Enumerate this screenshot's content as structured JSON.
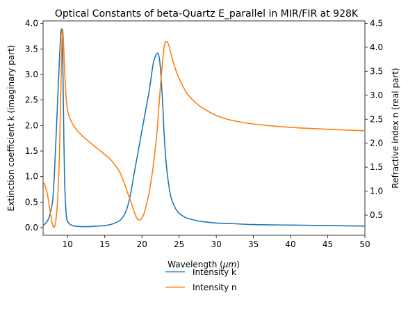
{
  "chart_data": {
    "type": "line",
    "title": "Optical Constants of beta-Quartz E_parallel in MIR/FIR at 928K",
    "xlabel_main": "Wavelength (",
    "xlabel_unit": "μm",
    "xlabel_close": ")",
    "ylabel_left": "Extinction coefficient k (imaginary part)",
    "ylabel_right": "Refractive index n (real part)",
    "xlim": [
      6.7,
      50
    ],
    "ylim_left": [
      -0.15,
      4.05
    ],
    "ylim_right": [
      0.08,
      4.55
    ],
    "xticks": [
      10,
      15,
      20,
      25,
      30,
      35,
      40,
      45,
      50
    ],
    "xtick_labels": [
      "10",
      "15",
      "20",
      "25",
      "30",
      "35",
      "40",
      "45",
      "50"
    ],
    "yticks_left": [
      0.0,
      0.5,
      1.0,
      1.5,
      2.0,
      2.5,
      3.0,
      3.5,
      4.0
    ],
    "ytick_labels_left": [
      "0.0",
      "0.5",
      "1.0",
      "1.5",
      "2.0",
      "2.5",
      "3.0",
      "3.5",
      "4.0"
    ],
    "yticks_right": [
      0.5,
      1.0,
      1.5,
      2.0,
      2.5,
      3.0,
      3.5,
      4.0,
      4.5
    ],
    "ytick_labels_right": [
      "0.5",
      "1.0",
      "1.5",
      "2.0",
      "2.5",
      "3.0",
      "3.5",
      "4.0",
      "4.5"
    ],
    "grid": false,
    "legend_position": "below-center",
    "series": [
      {
        "name": "Intensity k",
        "axis": "left",
        "color": "#1f77b4",
        "x": [
          6.7,
          7.0,
          7.5,
          8.0,
          8.3,
          8.6,
          8.9,
          9.1,
          9.25,
          9.35,
          9.45,
          9.6,
          9.8,
          10.0,
          10.5,
          11.0,
          12.0,
          13.0,
          14.0,
          15.0,
          16.0,
          17.0,
          17.5,
          18.0,
          18.5,
          19.0,
          19.5,
          20.0,
          20.5,
          21.0,
          21.5,
          21.8,
          22.1,
          22.3,
          22.5,
          22.8,
          23.0,
          23.3,
          23.7,
          24.0,
          24.5,
          25.0,
          26.0,
          27.0,
          28.0,
          30.0,
          32.0,
          35.0,
          40.0,
          45.0,
          50.0
        ],
        "values": [
          0.04,
          0.08,
          0.2,
          0.55,
          1.3,
          2.3,
          3.3,
          3.83,
          3.83,
          3.3,
          2.2,
          0.9,
          0.28,
          0.12,
          0.05,
          0.03,
          0.02,
          0.02,
          0.03,
          0.04,
          0.07,
          0.14,
          0.22,
          0.38,
          0.68,
          1.1,
          1.5,
          1.9,
          2.3,
          2.7,
          3.2,
          3.35,
          3.42,
          3.35,
          3.1,
          2.4,
          1.8,
          1.2,
          0.75,
          0.55,
          0.38,
          0.28,
          0.19,
          0.15,
          0.12,
          0.09,
          0.08,
          0.06,
          0.05,
          0.04,
          0.03
        ]
      },
      {
        "name": "Intensity n",
        "axis": "right",
        "color": "#ff7f0e",
        "x": [
          6.7,
          7.0,
          7.3,
          7.6,
          7.9,
          8.1,
          8.3,
          8.5,
          8.7,
          8.9,
          9.1,
          9.25,
          9.35,
          9.45,
          9.6,
          9.8,
          10.0,
          10.3,
          10.6,
          11.0,
          11.5,
          12.0,
          12.5,
          13.0,
          13.5,
          14.0,
          14.5,
          15.0,
          15.5,
          16.0,
          16.5,
          17.0,
          17.5,
          18.0,
          18.5,
          19.0,
          19.3,
          19.6,
          19.9,
          20.2,
          20.5,
          21.0,
          21.5,
          22.0,
          22.3,
          22.6,
          22.9,
          23.1,
          23.3,
          23.6,
          24.0,
          24.5,
          25.0,
          26.0,
          27.0,
          28.0,
          30.0,
          32.0,
          35.0,
          40.0,
          45.0,
          50.0
        ],
        "values": [
          1.2,
          1.1,
          0.92,
          0.62,
          0.35,
          0.25,
          0.29,
          0.5,
          0.95,
          1.8,
          3.2,
          4.25,
          4.35,
          4.1,
          3.5,
          2.95,
          2.68,
          2.52,
          2.42,
          2.32,
          2.23,
          2.15,
          2.08,
          2.02,
          1.95,
          1.89,
          1.83,
          1.76,
          1.7,
          1.62,
          1.52,
          1.4,
          1.22,
          1.0,
          0.78,
          0.55,
          0.44,
          0.4,
          0.42,
          0.5,
          0.65,
          1.0,
          1.5,
          2.2,
          2.8,
          3.4,
          3.9,
          4.08,
          4.12,
          4.05,
          3.8,
          3.55,
          3.35,
          3.05,
          2.88,
          2.75,
          2.58,
          2.48,
          2.4,
          2.33,
          2.29,
          2.26
        ]
      }
    ]
  }
}
